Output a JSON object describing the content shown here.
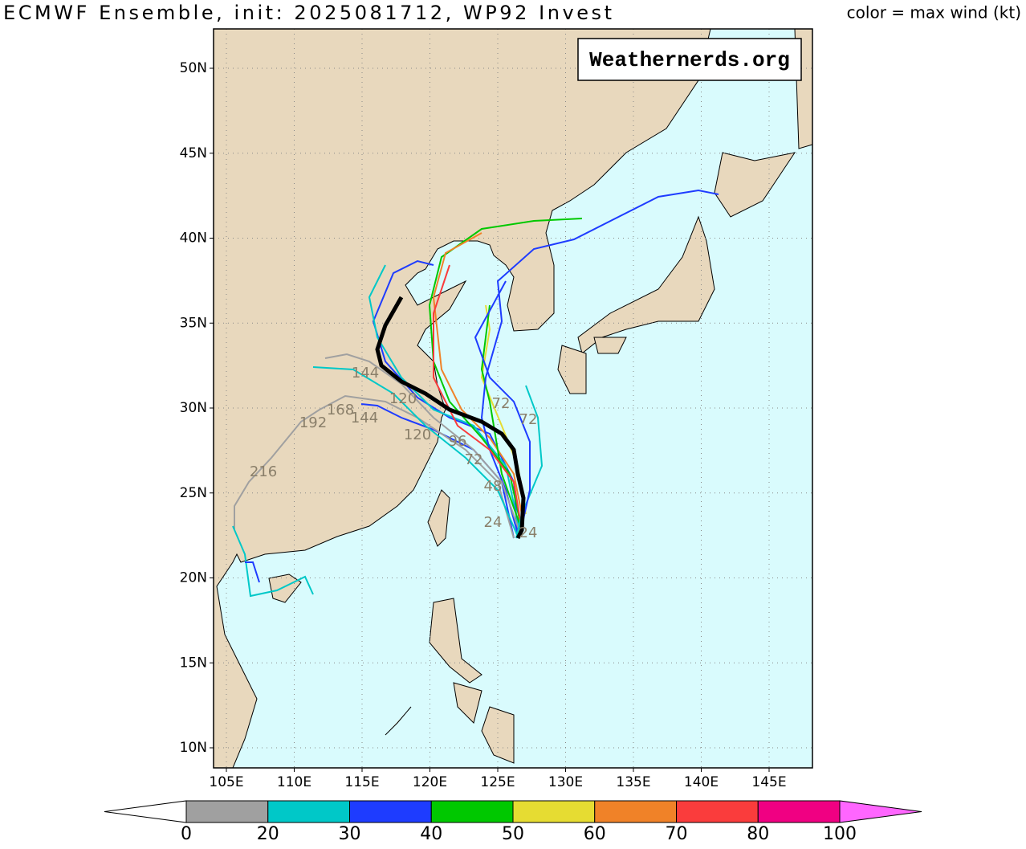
{
  "title": "ECMWF Ensemble, init: 2025081712, WP92 Invest",
  "subtitle": "color = max wind (kt)",
  "watermark": "Weathernerds.org",
  "map": {
    "yticks": [
      {
        "value": 50,
        "label": "50N"
      },
      {
        "value": 45,
        "label": "45N"
      },
      {
        "value": 40,
        "label": "40N"
      },
      {
        "value": 35,
        "label": "35N"
      },
      {
        "value": 30,
        "label": "30N"
      },
      {
        "value": 25,
        "label": "25N"
      },
      {
        "value": 20,
        "label": "20N"
      },
      {
        "value": 15,
        "label": "15N"
      },
      {
        "value": 10,
        "label": "10N"
      }
    ],
    "xticks": [
      {
        "value": 105,
        "label": "105E"
      },
      {
        "value": 110,
        "label": "110E"
      },
      {
        "value": 115,
        "label": "115E"
      },
      {
        "value": 120,
        "label": "120E"
      },
      {
        "value": 125,
        "label": "125E"
      },
      {
        "value": 130,
        "label": "130E"
      },
      {
        "value": 135,
        "label": "135E"
      },
      {
        "value": 140,
        "label": "140E"
      },
      {
        "value": 145,
        "label": "145E"
      }
    ],
    "grid": true,
    "track_labels": [
      "144",
      "120",
      "192",
      "168",
      "144",
      "216",
      "120",
      "96",
      "72",
      "72",
      "72",
      "48",
      "24",
      "24"
    ]
  },
  "colorbar": {
    "ticks": [
      0,
      20,
      30,
      40,
      50,
      60,
      70,
      80,
      100
    ],
    "colors": [
      "#a0a0a0",
      "#00c8c8",
      "#1e3cff",
      "#00c800",
      "#e6dc32",
      "#f08228",
      "#fa3c3c",
      "#f00082"
    ],
    "under_color": "#ffffff",
    "over_color": "#ff66ff"
  }
}
